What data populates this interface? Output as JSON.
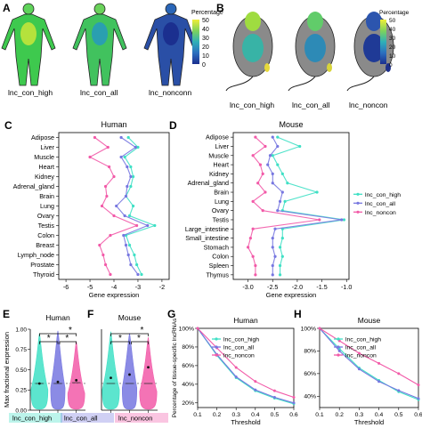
{
  "panels": {
    "A": {
      "letter": "A",
      "labels": [
        "lnc_con_high",
        "lnc_con_all",
        "lnc_nonconn"
      ],
      "legend_title": "Percentage",
      "legend_ticks": [
        "50",
        "40",
        "30",
        "20",
        "10",
        "0"
      ]
    },
    "B": {
      "letter": "B",
      "labels": [
        "lnc_con_high",
        "lnc_con_all",
        "lnc_noncon"
      ],
      "legend_title": "Percentage",
      "legend_ticks": [
        "50",
        "40",
        "30",
        "20",
        "10",
        "0"
      ]
    }
  },
  "colors": {
    "lnc_con_high": "#3fe0c5",
    "lnc_con_all": "#7777e0",
    "lnc_noncon": "#f25aa8"
  },
  "colorbar": [
    "#1b2f8f",
    "#2c5fb8",
    "#2f9fc0",
    "#45c490",
    "#9fd84b",
    "#f0ee3a"
  ],
  "chart_data": [
    {
      "panel": "C",
      "type": "line",
      "title": "Human",
      "xlabel": "Gene expression",
      "orientation": "horizontal",
      "xlim": [
        -6.3,
        -1.7
      ],
      "xticks": [
        "-6",
        "-5",
        "-4",
        "-3",
        "-2"
      ],
      "categories": [
        "Adipose",
        "Liver",
        "Muscle",
        "Heart",
        "Kidney",
        "Adrenal_gland",
        "Brain",
        "Lung",
        "Ovary",
        "Testis",
        "Colon",
        "Breast",
        "Lymph_node",
        "Prostate",
        "Thyroid"
      ],
      "series": [
        {
          "name": "lnc_con_high",
          "values": [
            -3.4,
            -3.0,
            -3.55,
            -3.3,
            -3.2,
            -3.3,
            -3.5,
            -3.2,
            -3.35,
            -2.3,
            -3.5,
            -3.35,
            -3.15,
            -3.05,
            -2.85
          ]
        },
        {
          "name": "lnc_con_all",
          "values": [
            -3.7,
            -3.1,
            -3.7,
            -3.45,
            -3.3,
            -3.45,
            -3.5,
            -3.9,
            -3.55,
            -2.6,
            -3.6,
            -3.5,
            -3.4,
            -3.3,
            -3.0
          ]
        },
        {
          "name": "lnc_noncon",
          "values": [
            -4.8,
            -4.25,
            -5.0,
            -4.2,
            -4.0,
            -4.35,
            -4.3,
            -4.5,
            -4.0,
            -3.05,
            -4.15,
            -4.6,
            -4.45,
            -4.35,
            -4.15
          ]
        }
      ]
    },
    {
      "panel": "D",
      "type": "line",
      "title": "Mouse",
      "xlabel": "Gene expression",
      "orientation": "horizontal",
      "xlim": [
        -3.3,
        -0.95
      ],
      "xticks": [
        "-3.0",
        "-2.5",
        "-2.0",
        "-1.5",
        "-1.0"
      ],
      "categories": [
        "Adipose",
        "Liver",
        "Muscle",
        "Heart",
        "Kidney",
        "Adrenal_gland",
        "Brain",
        "Lung",
        "Ovary",
        "Testis",
        "Large_intestine",
        "Small_intestine",
        "Stomach",
        "Colon",
        "Spleen",
        "Thymus"
      ],
      "series": [
        {
          "name": "lnc_con_high",
          "values": [
            -2.4,
            -1.95,
            -2.5,
            -2.4,
            -2.3,
            -2.2,
            -1.6,
            -2.25,
            -2.3,
            -1.05,
            -2.3,
            -2.3,
            -2.35,
            -2.3,
            -2.35,
            -2.35
          ]
        },
        {
          "name": "lnc_con_all",
          "values": [
            -2.5,
            -2.4,
            -2.55,
            -2.6,
            -2.5,
            -2.5,
            -2.3,
            -2.35,
            -2.4,
            -1.1,
            -2.45,
            -2.5,
            -2.5,
            -2.45,
            -2.5,
            -2.5
          ]
        },
        {
          "name": "lnc_noncon",
          "values": [
            -2.85,
            -2.65,
            -2.9,
            -2.75,
            -2.7,
            -2.8,
            -2.65,
            -2.9,
            -2.7,
            -1.55,
            -2.9,
            -2.95,
            -3.0,
            -2.9,
            -2.85,
            -2.85
          ]
        }
      ],
      "legend": [
        "lnc_con_high",
        "lnc_con_all",
        "lnc_noncon"
      ],
      "legend_position": "right"
    },
    {
      "panel": "E",
      "type": "violin",
      "title": "Human",
      "ylabel": "Max fractional expression",
      "ylim": [
        0.0,
        1.0
      ],
      "yticks": [
        "0.00",
        "0.25",
        "0.50",
        "0.75",
        "1.00"
      ],
      "categories": [
        "lnc_con_high",
        "lnc_con_all",
        "lnc_noncon"
      ],
      "medians": [
        0.33,
        0.33,
        0.34
      ],
      "means": [
        0.33,
        0.35,
        0.37
      ],
      "annotations": [
        "*",
        "*",
        "*"
      ]
    },
    {
      "panel": "F",
      "type": "violin",
      "title": "Mouse",
      "ylim": [
        0.0,
        1.0
      ],
      "categories": [
        "lnc_con_high",
        "lnc_con_all",
        "lnc_noncon"
      ],
      "medians": [
        0.33,
        0.33,
        0.33
      ],
      "means": [
        0.4,
        0.44,
        0.53
      ],
      "annotations": [
        "*",
        "*",
        "*"
      ]
    },
    {
      "panel": "G",
      "type": "line",
      "title": "Human",
      "xlabel": "Threshold",
      "ylabel": "Percentage of tissue-specific lncRNAs",
      "xlim": [
        0.1,
        0.6
      ],
      "ylim": [
        15,
        100
      ],
      "xticks": [
        "0.1",
        "0.2",
        "0.3",
        "0.4",
        "0.5",
        "0.6"
      ],
      "yticks": [
        "20%",
        "40%",
        "60%",
        "80%",
        "100%"
      ],
      "x": [
        0.1,
        0.2,
        0.3,
        0.4,
        0.5,
        0.6
      ],
      "series": [
        {
          "name": "lnc_con_high",
          "values": [
            100,
            71,
            47,
            33,
            25,
            19
          ]
        },
        {
          "name": "lnc_con_all",
          "values": [
            100,
            72,
            48,
            34,
            26,
            20
          ]
        },
        {
          "name": "lnc_noncon",
          "values": [
            100,
            79,
            58,
            43,
            33,
            26
          ]
        }
      ],
      "legend": [
        "lnc_con_high",
        "lnc_con_all",
        "lnc_noncon"
      ],
      "legend_position": "top-right"
    },
    {
      "panel": "H",
      "type": "line",
      "title": "Mouse",
      "xlabel": "Threshold",
      "xlim": [
        0.1,
        0.6
      ],
      "ylim": [
        30,
        100
      ],
      "xticks": [
        "0.1",
        "0.2",
        "0.3",
        "0.4",
        "0.5",
        "0.6"
      ],
      "yticks": [
        "40%",
        "60%",
        "80%",
        "100%"
      ],
      "x": [
        0.1,
        0.2,
        0.3,
        0.4,
        0.5,
        0.6
      ],
      "series": [
        {
          "name": "lnc_con_high",
          "values": [
            100,
            82,
            65,
            54,
            44,
            37
          ]
        },
        {
          "name": "lnc_con_all",
          "values": [
            100,
            80,
            64,
            53,
            45,
            38
          ]
        },
        {
          "name": "lnc_noncon",
          "values": [
            100,
            89,
            78,
            69,
            60,
            50
          ]
        }
      ],
      "legend": [
        "lnc_con_high",
        "lnc_con_all",
        "lnc_noncon"
      ],
      "legend_position": "top-right"
    }
  ]
}
